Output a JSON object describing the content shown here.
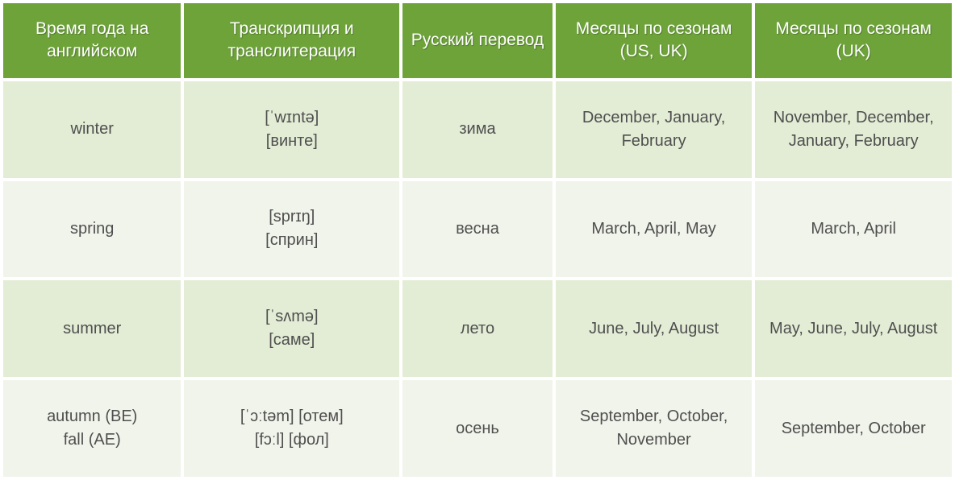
{
  "table": {
    "headers": [
      "Время года на английском",
      "Транскрипция и транслитерация",
      "Русский перевод",
      "Месяцы по сезонам\n(US, UK)",
      "Месяцы по сезонам\n(UK)"
    ],
    "rows": [
      {
        "season_en": "winter",
        "transcription": "[ˈwɪntə]\n[винте]",
        "season_ru": "зима",
        "months_us_uk": "December, January, February",
        "months_uk": "November, December, January, February"
      },
      {
        "season_en": "spring",
        "transcription": "[sprɪŋ]\n[сприн]",
        "season_ru": "весна",
        "months_us_uk": "March, April, May",
        "months_uk": "March, April"
      },
      {
        "season_en": "summer",
        "transcription": "[ˈsʌmə]\n[саме]",
        "season_ru": "лето",
        "months_us_uk": "June, July, August",
        "months_uk": "May, June, July, August"
      },
      {
        "season_en": "autumn (BE)\nfall (AE)",
        "transcription": "[ˈɔːtəm] [отем]\n[fɔːl] [фол]",
        "season_ru": "осень",
        "months_us_uk": "September, October, November",
        "months_uk": "September, October"
      }
    ],
    "colors": {
      "header_bg": "#6ea33a",
      "header_text": "#ffffff",
      "row_a_bg": "#e3edd5",
      "row_b_bg": "#f1f4eb",
      "cell_text": "#4f4f4f"
    },
    "font_family": "Comic Sans MS",
    "header_fontsize": 21,
    "cell_fontsize": 20
  }
}
